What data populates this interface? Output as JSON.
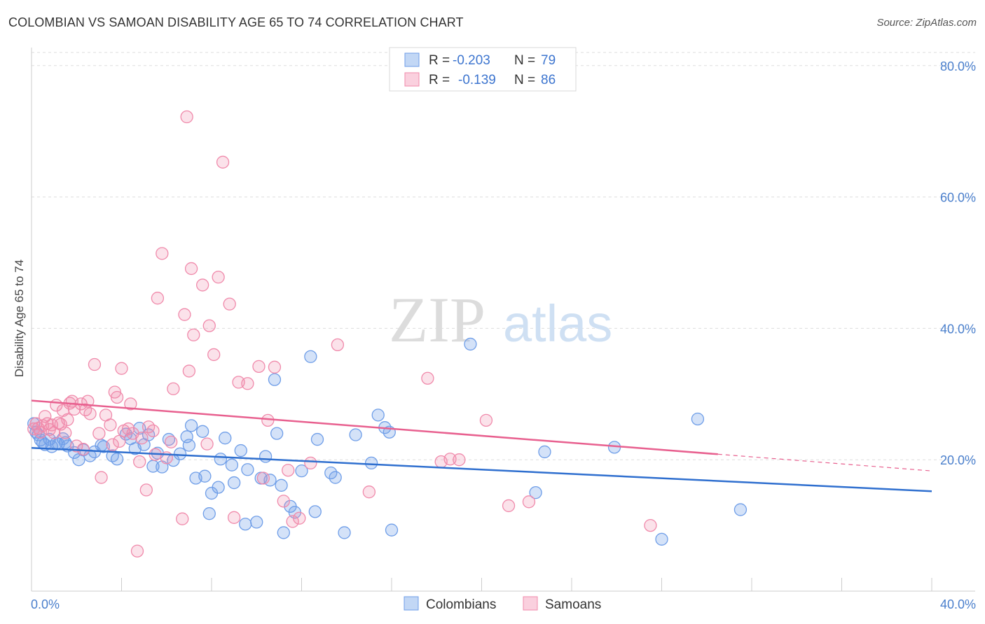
{
  "title": "COLOMBIAN VS SAMOAN DISABILITY AGE 65 TO 74 CORRELATION CHART",
  "source": "Source: ZipAtlas.com",
  "watermark": {
    "zip": "ZIP",
    "atlas": "atlas"
  },
  "legend": {
    "rows": [
      {
        "r_label": "R = ",
        "r_value": "-0.203",
        "n_label": "N = ",
        "n_value": "79",
        "color": "#6f9ee8"
      },
      {
        "r_label": "R = ",
        "r_value": "-0.139",
        "n_label": "N = ",
        "n_value": "86",
        "color": "#f08aab"
      }
    ]
  },
  "chart_data": {
    "type": "scatter",
    "title": "COLOMBIAN VS SAMOAN DISABILITY AGE 65 TO 74 CORRELATION CHART",
    "xlabel": "",
    "ylabel": "Disability Age 65 to 74",
    "xlim": [
      0,
      40
    ],
    "ylim": [
      0,
      82
    ],
    "x_tick_labels": [
      "0.0%",
      "40.0%"
    ],
    "y_ticks": [
      20,
      40,
      60,
      80
    ],
    "y_tick_labels": [
      "20.0%",
      "40.0%",
      "60.0%",
      "80.0%"
    ],
    "grid": "horizontal dashed",
    "legend_position": "top-center",
    "series": [
      {
        "name": "Colombians",
        "color": "#6f9ee8",
        "line_color": "#2f6fcf",
        "trend": {
          "x": [
            0,
            40
          ],
          "y": [
            21.8,
            15.2
          ],
          "dashed_from": null
        },
        "points": [
          [
            0.1,
            25.5
          ],
          [
            0.2,
            24.2
          ],
          [
            0.3,
            23.8
          ],
          [
            0.4,
            23.0
          ],
          [
            0.5,
            22.6
          ],
          [
            0.6,
            22.3
          ],
          [
            0.8,
            23.1
          ],
          [
            0.9,
            22.0
          ],
          [
            1.1,
            22.5
          ],
          [
            1.2,
            22.4
          ],
          [
            1.4,
            23.2
          ],
          [
            1.5,
            22.6
          ],
          [
            1.6,
            22.1
          ],
          [
            1.9,
            21.1
          ],
          [
            2.1,
            20.0
          ],
          [
            2.3,
            21.5
          ],
          [
            2.6,
            20.6
          ],
          [
            2.8,
            21.2
          ],
          [
            3.1,
            22.2
          ],
          [
            3.2,
            22.0
          ],
          [
            3.6,
            20.6
          ],
          [
            3.8,
            20.1
          ],
          [
            4.2,
            23.9
          ],
          [
            4.4,
            23.2
          ],
          [
            4.6,
            21.7
          ],
          [
            4.8,
            24.8
          ],
          [
            5.0,
            22.3
          ],
          [
            5.2,
            23.8
          ],
          [
            5.4,
            19.0
          ],
          [
            5.6,
            21.0
          ],
          [
            5.8,
            18.9
          ],
          [
            6.1,
            23.1
          ],
          [
            6.3,
            19.9
          ],
          [
            6.6,
            20.9
          ],
          [
            6.9,
            23.5
          ],
          [
            7.0,
            22.2
          ],
          [
            7.1,
            25.2
          ],
          [
            7.3,
            17.2
          ],
          [
            7.6,
            24.3
          ],
          [
            7.7,
            17.5
          ],
          [
            7.9,
            11.8
          ],
          [
            8.0,
            14.9
          ],
          [
            8.3,
            15.8
          ],
          [
            8.4,
            20.1
          ],
          [
            8.6,
            23.3
          ],
          [
            8.9,
            19.2
          ],
          [
            9.0,
            16.5
          ],
          [
            9.3,
            21.4
          ],
          [
            9.5,
            10.2
          ],
          [
            9.6,
            18.5
          ],
          [
            10.0,
            10.5
          ],
          [
            10.2,
            17.2
          ],
          [
            10.4,
            20.5
          ],
          [
            10.6,
            16.9
          ],
          [
            10.8,
            32.2
          ],
          [
            10.9,
            24.0
          ],
          [
            11.1,
            16.1
          ],
          [
            11.2,
            8.9
          ],
          [
            11.5,
            12.9
          ],
          [
            11.7,
            12.0
          ],
          [
            12.0,
            18.3
          ],
          [
            12.4,
            35.7
          ],
          [
            12.6,
            12.1
          ],
          [
            12.7,
            23.1
          ],
          [
            13.3,
            18.0
          ],
          [
            13.5,
            17.3
          ],
          [
            13.9,
            8.9
          ],
          [
            14.4,
            23.8
          ],
          [
            15.1,
            19.5
          ],
          [
            15.4,
            26.8
          ],
          [
            15.7,
            24.9
          ],
          [
            15.9,
            24.2
          ],
          [
            16.0,
            9.3
          ],
          [
            19.5,
            37.6
          ],
          [
            22.4,
            15.0
          ],
          [
            22.8,
            21.2
          ],
          [
            25.9,
            21.9
          ],
          [
            28.0,
            7.9
          ],
          [
            29.6,
            26.2
          ],
          [
            31.5,
            12.4
          ]
        ]
      },
      {
        "name": "Samoans",
        "color": "#f08aab",
        "line_color": "#e8608f",
        "trend": {
          "x": [
            0,
            40
          ],
          "y": [
            29.0,
            18.3
          ],
          "dashed_from": 30.5
        },
        "points": [
          [
            0.1,
            24.7
          ],
          [
            0.2,
            25.5
          ],
          [
            0.3,
            24.8
          ],
          [
            0.4,
            24.2
          ],
          [
            0.5,
            25.2
          ],
          [
            0.6,
            26.6
          ],
          [
            0.7,
            25.5
          ],
          [
            0.8,
            24.6
          ],
          [
            0.9,
            25.3
          ],
          [
            1.0,
            24.1
          ],
          [
            1.1,
            28.3
          ],
          [
            1.2,
            25.6
          ],
          [
            1.3,
            25.4
          ],
          [
            1.4,
            27.5
          ],
          [
            1.5,
            24.1
          ],
          [
            1.6,
            26.1
          ],
          [
            1.7,
            28.6
          ],
          [
            1.8,
            28.9
          ],
          [
            1.9,
            27.7
          ],
          [
            2.0,
            22.1
          ],
          [
            2.2,
            28.5
          ],
          [
            2.3,
            21.6
          ],
          [
            2.4,
            27.6
          ],
          [
            2.5,
            28.9
          ],
          [
            2.6,
            27.0
          ],
          [
            2.8,
            34.5
          ],
          [
            3.0,
            24.0
          ],
          [
            3.1,
            17.3
          ],
          [
            3.3,
            26.8
          ],
          [
            3.5,
            25.3
          ],
          [
            3.6,
            22.3
          ],
          [
            3.7,
            30.3
          ],
          [
            3.8,
            29.5
          ],
          [
            3.9,
            22.8
          ],
          [
            4.0,
            33.9
          ],
          [
            4.1,
            24.4
          ],
          [
            4.3,
            24.7
          ],
          [
            4.4,
            28.5
          ],
          [
            4.5,
            24.0
          ],
          [
            4.7,
            6.1
          ],
          [
            4.8,
            19.7
          ],
          [
            4.9,
            23.3
          ],
          [
            5.1,
            15.4
          ],
          [
            5.2,
            25.0
          ],
          [
            5.4,
            24.4
          ],
          [
            5.5,
            20.8
          ],
          [
            5.6,
            44.6
          ],
          [
            5.8,
            51.4
          ],
          [
            6.0,
            20.3
          ],
          [
            6.2,
            22.7
          ],
          [
            6.3,
            30.8
          ],
          [
            6.7,
            11.0
          ],
          [
            6.8,
            42.1
          ],
          [
            6.9,
            72.2
          ],
          [
            7.0,
            33.5
          ],
          [
            7.1,
            49.1
          ],
          [
            7.2,
            39.0
          ],
          [
            7.6,
            46.6
          ],
          [
            7.8,
            22.4
          ],
          [
            7.9,
            40.4
          ],
          [
            8.1,
            36.0
          ],
          [
            8.3,
            47.8
          ],
          [
            8.5,
            65.3
          ],
          [
            8.8,
            43.7
          ],
          [
            9.0,
            11.2
          ],
          [
            9.2,
            31.8
          ],
          [
            9.6,
            31.6
          ],
          [
            10.1,
            34.2
          ],
          [
            10.3,
            17.2
          ],
          [
            10.5,
            26.0
          ],
          [
            10.8,
            34.1
          ],
          [
            11.2,
            13.7
          ],
          [
            11.4,
            18.4
          ],
          [
            11.6,
            10.6
          ],
          [
            11.9,
            11.1
          ],
          [
            12.4,
            19.5
          ],
          [
            13.6,
            37.5
          ],
          [
            15.0,
            15.1
          ],
          [
            17.6,
            32.4
          ],
          [
            18.6,
            20.1
          ],
          [
            19.0,
            20.0
          ],
          [
            20.2,
            26.0
          ],
          [
            21.2,
            13.0
          ],
          [
            22.1,
            13.6
          ],
          [
            27.5,
            10.0
          ],
          [
            18.2,
            19.7
          ]
        ]
      }
    ]
  },
  "bottom_legend": [
    {
      "label": "Colombians",
      "color": "#6f9ee8"
    },
    {
      "label": "Samoans",
      "color": "#f08aab"
    }
  ]
}
